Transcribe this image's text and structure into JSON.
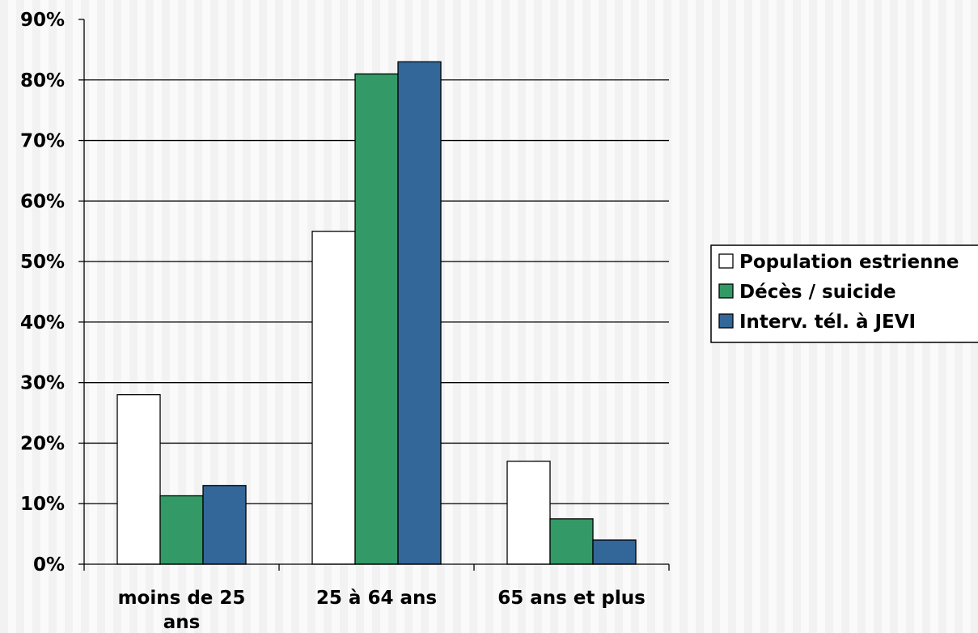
{
  "chart_data": {
    "type": "bar",
    "categories": [
      "moins de 25 ans",
      "25 à 64 ans",
      "65 ans et plus"
    ],
    "category_lines": [
      [
        "moins de 25",
        "ans"
      ],
      [
        "25 à 64 ans"
      ],
      [
        "65 ans et plus"
      ]
    ],
    "series": [
      {
        "name": "Population estrienne",
        "values": [
          28,
          55,
          17
        ],
        "color": "#ffffff"
      },
      {
        "name": "Décès / suicide",
        "values": [
          11.3,
          81,
          7.5
        ],
        "color": "#339966"
      },
      {
        "name": "Interv. tél. à JEVI",
        "values": [
          13,
          83,
          4
        ],
        "color": "#336699"
      }
    ],
    "ylim": [
      0,
      90
    ],
    "yticks": [
      "0%",
      "10%",
      "20%",
      "30%",
      "40%",
      "50%",
      "60%",
      "70%",
      "80%",
      "90%"
    ],
    "grid": true,
    "legend_position": "right",
    "background_color": "#f2f2f2",
    "stripe_color": "#fafafa"
  }
}
